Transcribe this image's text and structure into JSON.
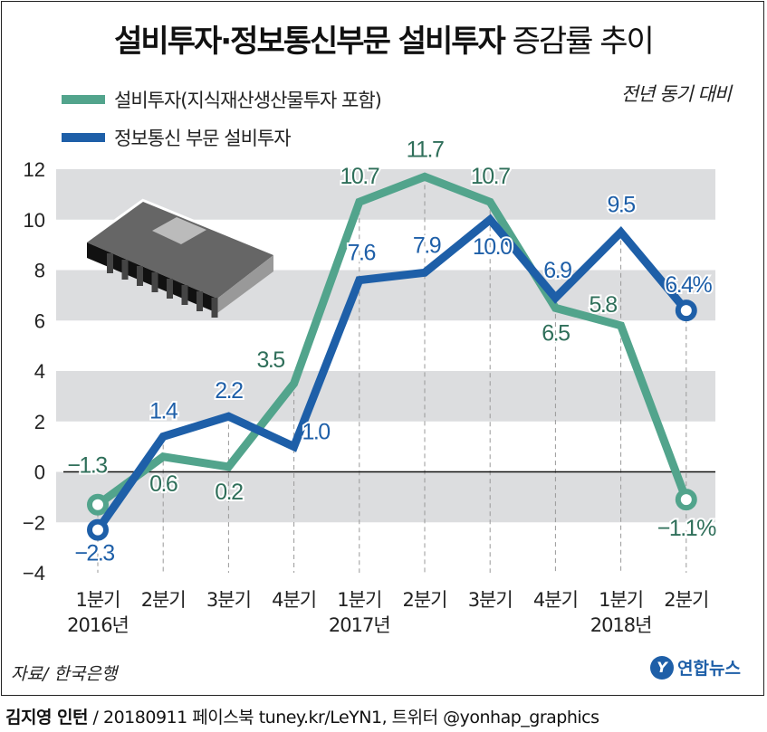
{
  "title_bold": "설비투자·정보통신부문 설비투자",
  "title_regular": "증감률 추이",
  "subtitle": "전년 동기 대비",
  "source": "자료/ 한국은행",
  "logo_text": "연합뉴스",
  "footer_author": "김지영 인턴",
  "footer_rest": " / 20180911  페이스북 tuney.kr/LeYN1, 트위터 @yonhap_graphics",
  "chart_data": {
    "type": "line",
    "categories": [
      "1분기",
      "2분기",
      "3분기",
      "4분기",
      "1분기",
      "2분기",
      "3분기",
      "4분기",
      "1분기",
      "2분기"
    ],
    "year_labels": [
      {
        "index": 0,
        "label": "2016년"
      },
      {
        "index": 4,
        "label": "2017년"
      },
      {
        "index": 8,
        "label": "2018년"
      }
    ],
    "ylim": [
      -4,
      12
    ],
    "yticks": [
      -4,
      -2,
      0,
      2,
      4,
      6,
      8,
      10,
      12
    ],
    "grid": "alternating horizontal bands",
    "last_label_suffix": "%",
    "series": [
      {
        "name": "설비투자(지식재산생산물투자 포함)",
        "color": "#52a48c",
        "label_color": "#2f6f5a",
        "values": [
          -1.3,
          0.6,
          0.2,
          3.5,
          10.7,
          11.7,
          10.7,
          6.5,
          5.8,
          -1.1
        ]
      },
      {
        "name": "정보통신 부문 설비투자",
        "color": "#1e5fa8",
        "label_color": "#1e5fa8",
        "values": [
          -2.3,
          1.4,
          2.2,
          1.0,
          7.6,
          7.9,
          10.0,
          6.9,
          9.5,
          6.4
        ]
      }
    ]
  }
}
